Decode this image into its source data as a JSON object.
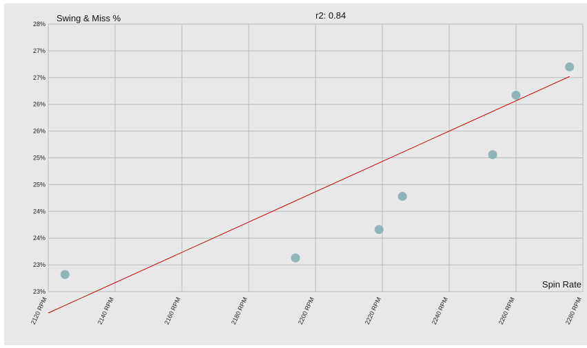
{
  "chart_data": {
    "type": "scatter",
    "title": "",
    "annotation": "r2: 0.84",
    "ylabel": "Swing & Miss %",
    "xlabel": "Spin Rate",
    "x_ticks": [
      "2120 RPM",
      "2140 RPM",
      "2160 RPM",
      "2180 RPM",
      "2200 RPM",
      "2220 RPM",
      "2240 RPM",
      "2260 RPM",
      "2280 RPM"
    ],
    "y_ticks": [
      "23%",
      "23%",
      "24%",
      "24%",
      "25%",
      "25%",
      "26%",
      "26%",
      "27%",
      "27%",
      "28%"
    ],
    "xlim": [
      2120,
      2280
    ],
    "ylim": [
      23,
      28
    ],
    "grid": true,
    "legend": "none",
    "colors": {
      "points": "#8fb5b9",
      "trendline": "#cc0000",
      "background": "#e8e8e8",
      "grid": "#bbbbbb"
    },
    "points": [
      {
        "x": 2125,
        "y": 23.32
      },
      {
        "x": 2194,
        "y": 23.63
      },
      {
        "x": 2219,
        "y": 24.16
      },
      {
        "x": 2226,
        "y": 24.78
      },
      {
        "x": 2253,
        "y": 25.56
      },
      {
        "x": 2260,
        "y": 26.67
      },
      {
        "x": 2276,
        "y": 27.2
      }
    ],
    "trendline": [
      {
        "x": 2120,
        "y": 22.6
      },
      {
        "x": 2276,
        "y": 27.02
      }
    ]
  }
}
